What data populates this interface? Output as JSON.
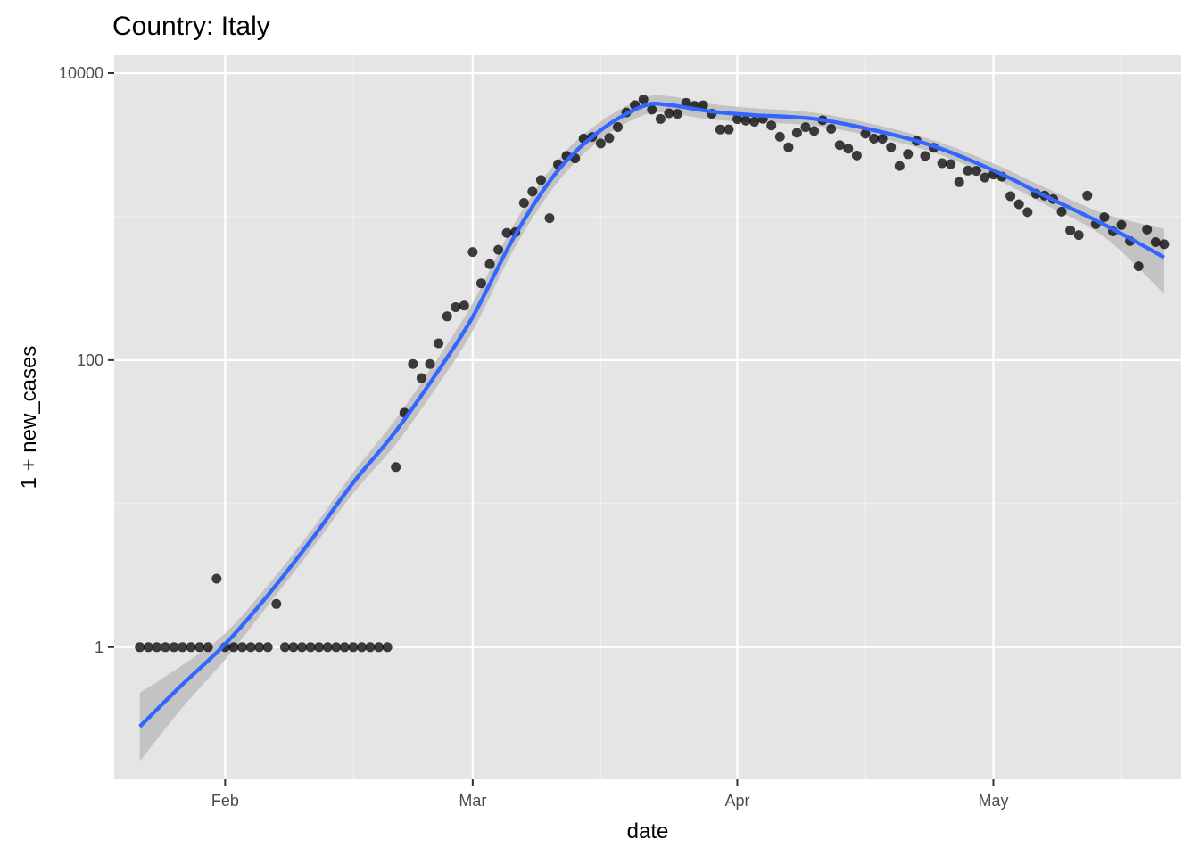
{
  "chart_data": {
    "type": "scatter",
    "title": "Country: Italy",
    "xlabel": "date",
    "ylabel": "1 + new_cases",
    "x_axis": {
      "type": "date",
      "range": [
        "2020-01-19",
        "2020-05-23"
      ],
      "ticks": [
        {
          "date": "2020-02-01",
          "label": "Feb"
        },
        {
          "date": "2020-03-01",
          "label": "Mar"
        },
        {
          "date": "2020-04-01",
          "label": "Apr"
        },
        {
          "date": "2020-05-01",
          "label": "May"
        }
      ],
      "minor_ticks": [
        "2020-01-16",
        "2020-02-16",
        "2020-03-16",
        "2020-04-16",
        "2020-05-16"
      ]
    },
    "y_axis": {
      "scale": "log10",
      "range": [
        0.12,
        10000
      ],
      "ticks": [
        {
          "value": 1,
          "label": "1"
        },
        {
          "value": 100,
          "label": "100"
        },
        {
          "value": 10000,
          "label": "10000"
        }
      ],
      "minor_ticks": [
        0.1,
        10,
        1000
      ]
    },
    "grid": true,
    "background": "#e5e5e5",
    "point_color": "#000000",
    "smooth_color": "#3366ff",
    "band_color": "#bdbdbd",
    "series": [
      {
        "kind": "points",
        "points": [
          [
            "2020-01-22",
            1
          ],
          [
            "2020-01-23",
            1
          ],
          [
            "2020-01-24",
            1
          ],
          [
            "2020-01-25",
            1
          ],
          [
            "2020-01-26",
            1
          ],
          [
            "2020-01-27",
            1
          ],
          [
            "2020-01-28",
            1
          ],
          [
            "2020-01-29",
            1
          ],
          [
            "2020-01-30",
            1
          ],
          [
            "2020-01-31",
            3
          ],
          [
            "2020-02-01",
            1
          ],
          [
            "2020-02-02",
            1
          ],
          [
            "2020-02-03",
            1
          ],
          [
            "2020-02-04",
            1
          ],
          [
            "2020-02-05",
            1
          ],
          [
            "2020-02-06",
            1
          ],
          [
            "2020-02-07",
            2
          ],
          [
            "2020-02-08",
            1
          ],
          [
            "2020-02-09",
            1
          ],
          [
            "2020-02-10",
            1
          ],
          [
            "2020-02-11",
            1
          ],
          [
            "2020-02-12",
            1
          ],
          [
            "2020-02-13",
            1
          ],
          [
            "2020-02-14",
            1
          ],
          [
            "2020-02-15",
            1
          ],
          [
            "2020-02-16",
            1
          ],
          [
            "2020-02-17",
            1
          ],
          [
            "2020-02-18",
            1
          ],
          [
            "2020-02-19",
            1
          ],
          [
            "2020-02-20",
            1
          ],
          [
            "2020-02-21",
            18
          ],
          [
            "2020-02-22",
            43
          ],
          [
            "2020-02-23",
            94
          ],
          [
            "2020-02-24",
            75
          ],
          [
            "2020-02-25",
            94
          ],
          [
            "2020-02-26",
            131
          ],
          [
            "2020-02-27",
            202
          ],
          [
            "2020-02-28",
            234
          ],
          [
            "2020-02-29",
            240
          ],
          [
            "2020-03-01",
            567
          ],
          [
            "2020-03-02",
            343
          ],
          [
            "2020-03-03",
            467
          ],
          [
            "2020-03-04",
            588
          ],
          [
            "2020-03-05",
            770
          ],
          [
            "2020-03-06",
            779
          ],
          [
            "2020-03-07",
            1248
          ],
          [
            "2020-03-08",
            1493
          ],
          [
            "2020-03-09",
            1798
          ],
          [
            "2020-03-10",
            977
          ],
          [
            "2020-03-11",
            2314
          ],
          [
            "2020-03-12",
            2652
          ],
          [
            "2020-03-13",
            2548
          ],
          [
            "2020-03-14",
            3498
          ],
          [
            "2020-03-15",
            3591
          ],
          [
            "2020-03-16",
            3234
          ],
          [
            "2020-03-17",
            3527
          ],
          [
            "2020-03-18",
            4208
          ],
          [
            "2020-03-19",
            5323
          ],
          [
            "2020-03-20",
            5987
          ],
          [
            "2020-03-21",
            6558
          ],
          [
            "2020-03-22",
            5561
          ],
          [
            "2020-03-23",
            4790
          ],
          [
            "2020-03-24",
            5250
          ],
          [
            "2020-03-25",
            5211
          ],
          [
            "2020-03-26",
            6204
          ],
          [
            "2020-03-27",
            5910
          ],
          [
            "2020-03-28",
            5975
          ],
          [
            "2020-03-29",
            5218
          ],
          [
            "2020-03-30",
            4051
          ],
          [
            "2020-03-31",
            4054
          ],
          [
            "2020-04-01",
            4783
          ],
          [
            "2020-04-02",
            4669
          ],
          [
            "2020-04-03",
            4586
          ],
          [
            "2020-04-04",
            4806
          ],
          [
            "2020-04-05",
            4317
          ],
          [
            "2020-04-06",
            3600
          ],
          [
            "2020-04-07",
            3040
          ],
          [
            "2020-04-08",
            3838
          ],
          [
            "2020-04-09",
            4205
          ],
          [
            "2020-04-10",
            3953
          ],
          [
            "2020-04-11",
            4694
          ],
          [
            "2020-04-12",
            4092
          ],
          [
            "2020-04-13",
            3153
          ],
          [
            "2020-04-14",
            2973
          ],
          [
            "2020-04-15",
            2668
          ],
          [
            "2020-04-16",
            3786
          ],
          [
            "2020-04-17",
            3493
          ],
          [
            "2020-04-18",
            3491
          ],
          [
            "2020-04-19",
            3047
          ],
          [
            "2020-04-20",
            2256
          ],
          [
            "2020-04-21",
            2729
          ],
          [
            "2020-04-22",
            3370
          ],
          [
            "2020-04-23",
            2646
          ],
          [
            "2020-04-24",
            3021
          ],
          [
            "2020-04-25",
            2357
          ],
          [
            "2020-04-26",
            2324
          ],
          [
            "2020-04-27",
            1739
          ],
          [
            "2020-04-28",
            2091
          ],
          [
            "2020-04-29",
            2086
          ],
          [
            "2020-04-30",
            1872
          ],
          [
            "2020-05-01",
            1965
          ],
          [
            "2020-05-02",
            1900
          ],
          [
            "2020-05-03",
            1389
          ],
          [
            "2020-05-04",
            1221
          ],
          [
            "2020-05-05",
            1075
          ],
          [
            "2020-05-06",
            1444
          ],
          [
            "2020-05-07",
            1401
          ],
          [
            "2020-05-08",
            1327
          ],
          [
            "2020-05-09",
            1083
          ],
          [
            "2020-05-10",
            802
          ],
          [
            "2020-05-11",
            744
          ],
          [
            "2020-05-12",
            1402
          ],
          [
            "2020-05-13",
            888
          ],
          [
            "2020-05-14",
            992
          ],
          [
            "2020-05-15",
            789
          ],
          [
            "2020-05-16",
            875
          ],
          [
            "2020-05-17",
            675
          ],
          [
            "2020-05-18",
            451
          ],
          [
            "2020-05-19",
            813
          ],
          [
            "2020-05-20",
            665
          ],
          [
            "2020-05-21",
            642
          ]
        ]
      },
      {
        "kind": "smooth",
        "line": [
          [
            "2020-01-22",
            0.28
          ],
          [
            "2020-01-27",
            0.55
          ],
          [
            "2020-02-01",
            1.05
          ],
          [
            "2020-02-06",
            2.3
          ],
          [
            "2020-02-11",
            5.5
          ],
          [
            "2020-02-16",
            14
          ],
          [
            "2020-02-21",
            32
          ],
          [
            "2020-02-26",
            85
          ],
          [
            "2020-03-01",
            200
          ],
          [
            "2020-03-06",
            750
          ],
          [
            "2020-03-11",
            2100
          ],
          [
            "2020-03-16",
            4000
          ],
          [
            "2020-03-21",
            5900
          ],
          [
            "2020-03-24",
            6000
          ],
          [
            "2020-03-29",
            5400
          ],
          [
            "2020-04-03",
            5100
          ],
          [
            "2020-04-10",
            4800
          ],
          [
            "2020-04-17",
            4000
          ],
          [
            "2020-04-24",
            3100
          ],
          [
            "2020-05-01",
            2100
          ],
          [
            "2020-05-07",
            1400
          ],
          [
            "2020-05-14",
            880
          ],
          [
            "2020-05-21",
            520
          ]
        ],
        "band_upper": [
          [
            "2020-01-22",
            0.48
          ],
          [
            "2020-01-27",
            0.75
          ],
          [
            "2020-02-01",
            1.25
          ],
          [
            "2020-02-06",
            2.7
          ],
          [
            "2020-02-11",
            6.4
          ],
          [
            "2020-02-16",
            16.5
          ],
          [
            "2020-02-21",
            39
          ],
          [
            "2020-02-26",
            105
          ],
          [
            "2020-03-01",
            250
          ],
          [
            "2020-03-06",
            920
          ],
          [
            "2020-03-11",
            2500
          ],
          [
            "2020-03-16",
            4600
          ],
          [
            "2020-03-21",
            6700
          ],
          [
            "2020-03-24",
            6900
          ],
          [
            "2020-03-29",
            6100
          ],
          [
            "2020-04-03",
            5700
          ],
          [
            "2020-04-10",
            5300
          ],
          [
            "2020-04-17",
            4400
          ],
          [
            "2020-04-24",
            3400
          ],
          [
            "2020-05-01",
            2350
          ],
          [
            "2020-05-07",
            1600
          ],
          [
            "2020-05-14",
            1050
          ],
          [
            "2020-05-21",
            820
          ]
        ],
        "band_lower": [
          [
            "2020-01-22",
            0.16
          ],
          [
            "2020-01-27",
            0.38
          ],
          [
            "2020-02-01",
            0.82
          ],
          [
            "2020-02-06",
            1.95
          ],
          [
            "2020-02-11",
            4.7
          ],
          [
            "2020-02-16",
            11.8
          ],
          [
            "2020-02-21",
            26
          ],
          [
            "2020-02-26",
            68
          ],
          [
            "2020-03-01",
            160
          ],
          [
            "2020-03-06",
            620
          ],
          [
            "2020-03-11",
            1750
          ],
          [
            "2020-03-16",
            3450
          ],
          [
            "2020-03-21",
            5100
          ],
          [
            "2020-03-24",
            5250
          ],
          [
            "2020-03-29",
            4750
          ],
          [
            "2020-04-03",
            4550
          ],
          [
            "2020-04-10",
            4300
          ],
          [
            "2020-04-17",
            3600
          ],
          [
            "2020-04-24",
            2800
          ],
          [
            "2020-05-01",
            1870
          ],
          [
            "2020-05-07",
            1220
          ],
          [
            "2020-05-14",
            720
          ],
          [
            "2020-05-21",
            290
          ]
        ]
      }
    ]
  }
}
